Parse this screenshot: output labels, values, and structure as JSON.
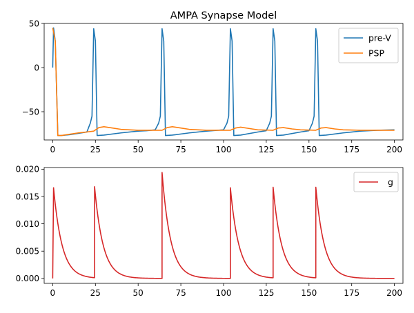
{
  "figure_title": "AMPA Synapse Model",
  "colors": {
    "pre_v": "#1f77b4",
    "psp": "#ff7f0e",
    "g": "#d62728"
  },
  "chart_data": [
    {
      "type": "line",
      "title": "AMPA Synapse Model",
      "xlabel": "",
      "ylabel": "",
      "xlim": [
        -5,
        205
      ],
      "ylim": [
        -82,
        50
      ],
      "xticks": [
        0,
        25,
        50,
        75,
        100,
        125,
        150,
        175,
        200
      ],
      "yticks": [
        50,
        0,
        -50
      ],
      "grid": false,
      "legend": "top-right",
      "series": [
        {
          "name": "pre-V",
          "points": [
            [
              0,
              0
            ],
            [
              0.5,
              45
            ],
            [
              1.5,
              30
            ],
            [
              3,
              -77
            ],
            [
              5,
              -77
            ],
            [
              10,
              -76
            ],
            [
              15,
              -74.5
            ],
            [
              20,
              -73
            ],
            [
              22,
              -63
            ],
            [
              23,
              -55
            ],
            [
              24,
              44
            ],
            [
              25,
              30
            ],
            [
              26,
              -77
            ],
            [
              30,
              -76.5
            ],
            [
              40,
              -74
            ],
            [
              50,
              -72
            ],
            [
              55,
              -71.5
            ],
            [
              60,
              -70.5
            ],
            [
              62,
              -63
            ],
            [
              63,
              -55
            ],
            [
              64,
              44
            ],
            [
              65,
              30
            ],
            [
              66,
              -77
            ],
            [
              70,
              -76.5
            ],
            [
              80,
              -74
            ],
            [
              90,
              -72
            ],
            [
              100,
              -70.5
            ],
            [
              102,
              -63
            ],
            [
              103,
              -55
            ],
            [
              104,
              44
            ],
            [
              105,
              30
            ],
            [
              106,
              -77
            ],
            [
              110,
              -76.5
            ],
            [
              120,
              -73
            ],
            [
              125,
              -71.5
            ],
            [
              127,
              -63
            ],
            [
              128,
              -55
            ],
            [
              129,
              44
            ],
            [
              130,
              30
            ],
            [
              131,
              -77
            ],
            [
              135,
              -76.5
            ],
            [
              145,
              -73
            ],
            [
              150,
              -71.5
            ],
            [
              152,
              -63
            ],
            [
              153,
              -55
            ],
            [
              154,
              44
            ],
            [
              155,
              30
            ],
            [
              156,
              -77
            ],
            [
              160,
              -76.5
            ],
            [
              170,
              -74
            ],
            [
              180,
              -72
            ],
            [
              190,
              -71
            ],
            [
              200,
              -70.5
            ]
          ]
        },
        {
          "name": "PSP",
          "points": [
            [
              0,
              45
            ],
            [
              1.5,
              30
            ],
            [
              3,
              -77
            ],
            [
              5,
              -77
            ],
            [
              10,
              -75.5
            ],
            [
              15,
              -74
            ],
            [
              20,
              -73
            ],
            [
              24,
              -72
            ],
            [
              27,
              -68
            ],
            [
              30,
              -67
            ],
            [
              35,
              -68.5
            ],
            [
              40,
              -70
            ],
            [
              50,
              -71
            ],
            [
              60,
              -71
            ],
            [
              64,
              -71
            ],
            [
              67,
              -68
            ],
            [
              70,
              -67
            ],
            [
              75,
              -68.5
            ],
            [
              80,
              -70
            ],
            [
              90,
              -71
            ],
            [
              104,
              -71
            ],
            [
              107,
              -68.5
            ],
            [
              110,
              -67.5
            ],
            [
              115,
              -69
            ],
            [
              120,
              -70.5
            ],
            [
              129,
              -71
            ],
            [
              132,
              -68.5
            ],
            [
              135,
              -68
            ],
            [
              140,
              -69.5
            ],
            [
              145,
              -70.5
            ],
            [
              154,
              -71
            ],
            [
              157,
              -68.5
            ],
            [
              160,
              -68
            ],
            [
              165,
              -69.5
            ],
            [
              170,
              -70.5
            ],
            [
              180,
              -71
            ],
            [
              190,
              -71
            ],
            [
              200,
              -71
            ]
          ]
        }
      ]
    },
    {
      "type": "line",
      "title": "",
      "xlabel": "",
      "ylabel": "",
      "xlim": [
        -5,
        205
      ],
      "ylim": [
        -0.0009,
        0.0203
      ],
      "xticks": [
        0,
        25,
        50,
        75,
        100,
        125,
        150,
        175,
        200
      ],
      "yticks": [
        0.0,
        0.005,
        0.01,
        0.015,
        0.02
      ],
      "ytick_labels": [
        "0.000",
        "0.005",
        "0.010",
        "0.015",
        "0.020"
      ],
      "grid": false,
      "legend": "top-right",
      "spikes": [
        0.5,
        24.5,
        64,
        104,
        129,
        154
      ],
      "peaks": [
        0.0166,
        0.0168,
        0.0194,
        0.0166,
        0.0167,
        0.0167
      ],
      "decay_tau": 5,
      "x_end": 200,
      "series": [
        {
          "name": "g"
        }
      ]
    }
  ]
}
